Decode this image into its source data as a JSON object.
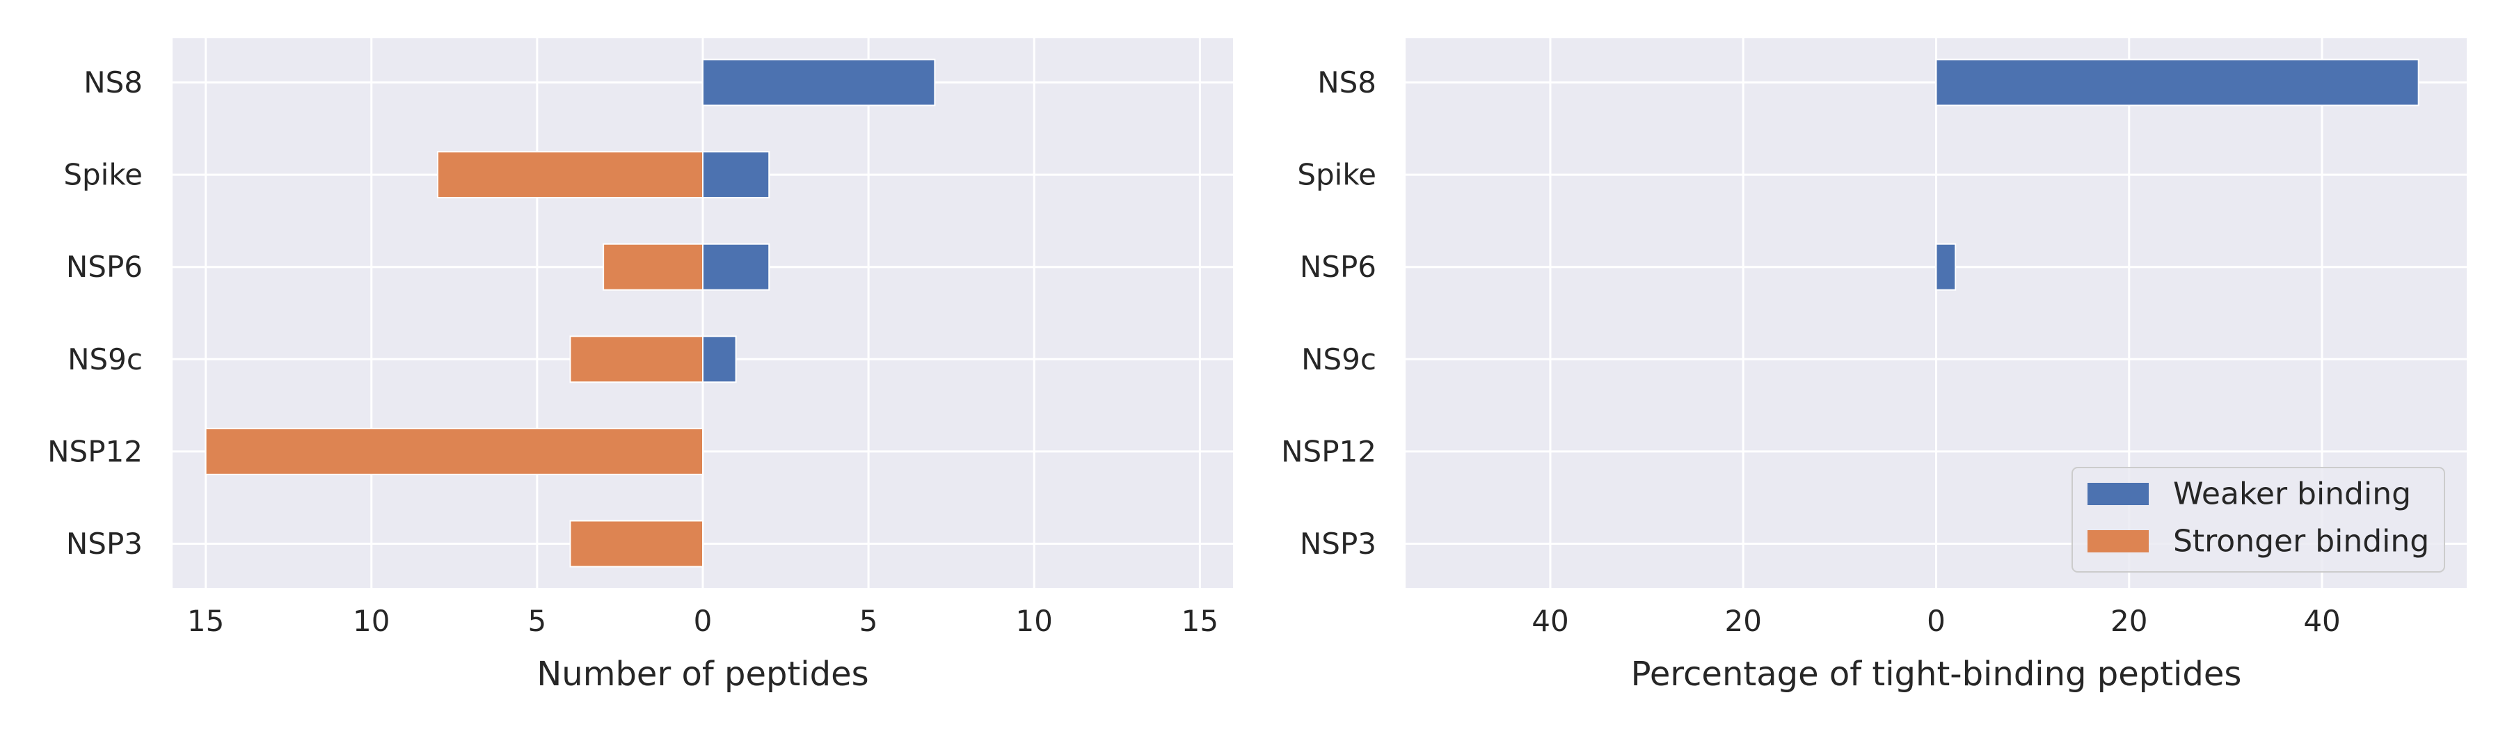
{
  "chart_data": [
    {
      "type": "bar",
      "orientation": "horizontal",
      "categories": [
        "NS8",
        "Spike",
        "NSP6",
        "NS9c",
        "NSP12",
        "NSP3"
      ],
      "series": [
        {
          "name": "Weaker binding",
          "values": [
            7,
            2,
            2,
            1,
            0,
            0
          ],
          "direction": "right",
          "color": "#4c72b0"
        },
        {
          "name": "Stronger binding",
          "values": [
            0,
            8,
            3,
            4,
            15,
            4
          ],
          "direction": "left",
          "color": "#dd8452"
        }
      ],
      "xlabel": "Number of peptides",
      "ylabel": "",
      "xlim": [
        -16,
        16
      ],
      "xticks": [
        -15,
        -10,
        -5,
        0,
        5,
        10,
        15
      ],
      "xtick_labels": [
        "15",
        "10",
        "5",
        "0",
        "5",
        "10",
        "15"
      ],
      "grid": true,
      "legend": null
    },
    {
      "type": "bar",
      "orientation": "horizontal",
      "categories": [
        "NS8",
        "Spike",
        "NSP6",
        "NS9c",
        "NSP12",
        "NSP3"
      ],
      "series": [
        {
          "name": "Weaker binding",
          "values": [
            50,
            0,
            2,
            0,
            0,
            0
          ],
          "direction": "right",
          "color": "#4c72b0"
        },
        {
          "name": "Stronger binding",
          "values": [
            0,
            0,
            0,
            0,
            0,
            0
          ],
          "direction": "left",
          "color": "#dd8452"
        }
      ],
      "xlabel": "Percentage of tight-binding peptides",
      "ylabel": "",
      "xlim": [
        -55,
        55
      ],
      "xticks": [
        -40,
        -20,
        0,
        20,
        40
      ],
      "xtick_labels": [
        "40",
        "20",
        "0",
        "20",
        "40"
      ],
      "grid": true,
      "legend": "lower-right"
    }
  ]
}
